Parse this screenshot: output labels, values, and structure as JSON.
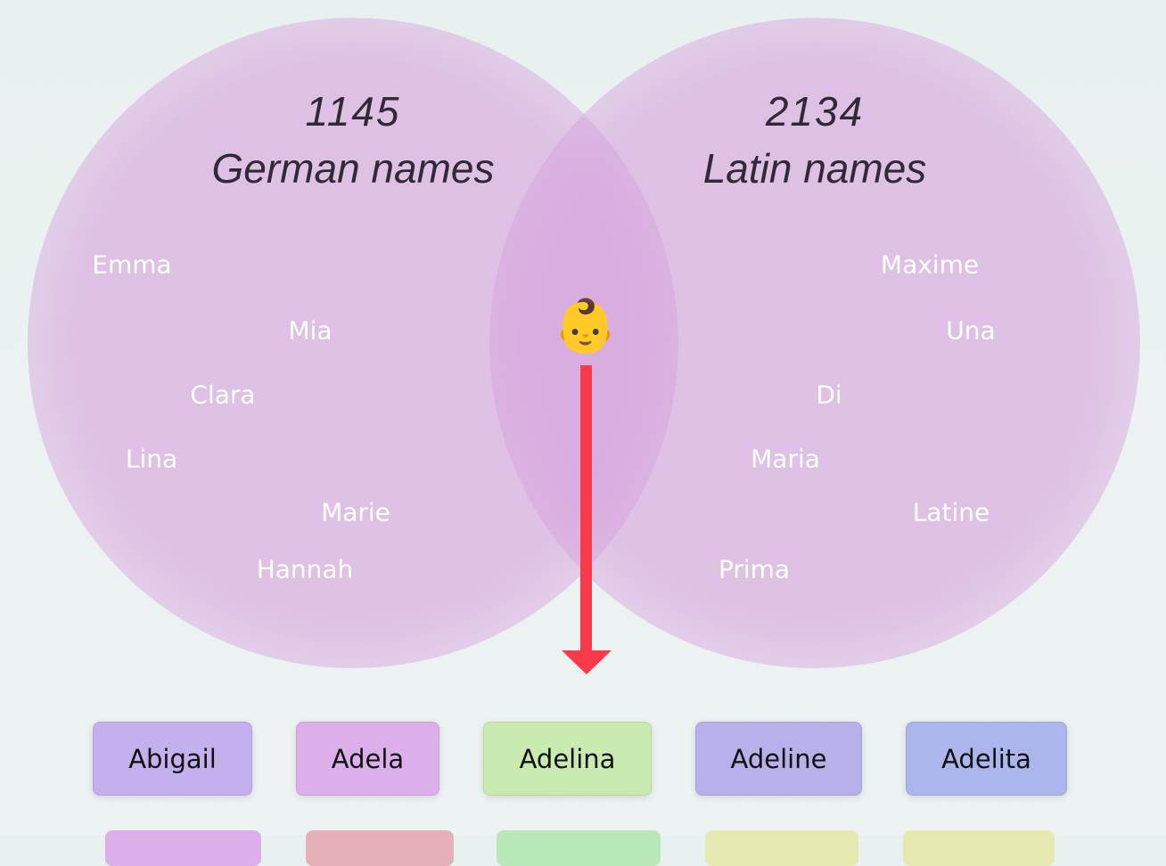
{
  "venn": {
    "left": {
      "count": "1145",
      "label": "German names",
      "names": [
        "Emma",
        "Mia",
        "Clara",
        "Lina",
        "Marie",
        "Hannah"
      ]
    },
    "right": {
      "count": "2134",
      "label": "Latin names",
      "names": [
        "Maxime",
        "Una",
        "Di",
        "Maria",
        "Latine",
        "Prima"
      ]
    },
    "icon": "👶"
  },
  "results": [
    "Abigail",
    "Adela",
    "Adelina",
    "Adeline",
    "Adelita"
  ]
}
